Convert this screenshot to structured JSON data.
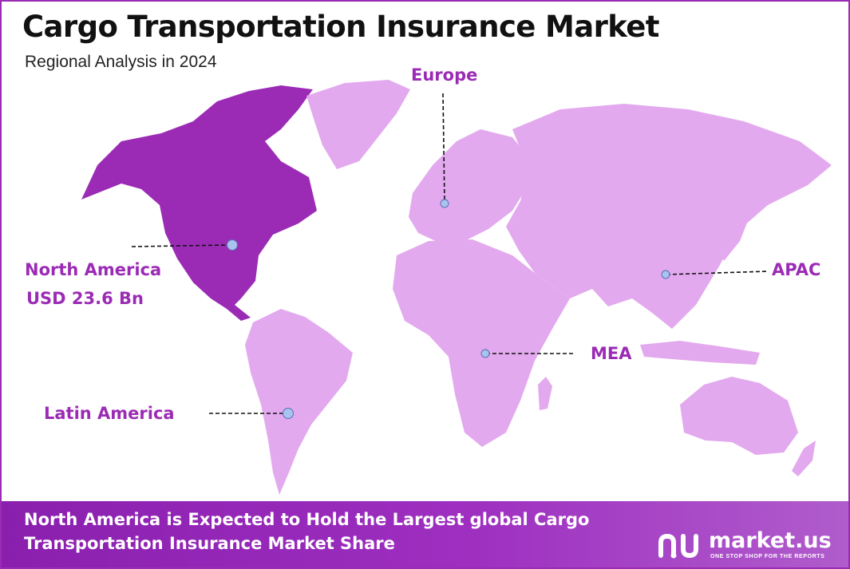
{
  "header": {
    "title": "Cargo Transportation Insurance Market",
    "subtitle": "Regional Analysis in 2024"
  },
  "colors": {
    "highlight_region": "#9b2bb5",
    "other_regions": "#e3a9ee",
    "label": "#9b2bb5",
    "marker": "#a9c2ee",
    "footer": "#8a1fae"
  },
  "regions": [
    {
      "id": "north-america",
      "name": "North America",
      "value": "USD 23.6 Bn",
      "highlighted": true
    },
    {
      "id": "europe",
      "name": "Europe"
    },
    {
      "id": "apac",
      "name": "APAC"
    },
    {
      "id": "mea",
      "name": "MEA"
    },
    {
      "id": "latin-america",
      "name": "Latin America"
    }
  ],
  "footer": {
    "line1": "North America is Expected to Hold the Largest global Cargo",
    "line2": "Transportation Insurance Market Share",
    "brand_name": "market.us",
    "brand_tagline": "ONE STOP SHOP FOR THE REPORTS"
  }
}
